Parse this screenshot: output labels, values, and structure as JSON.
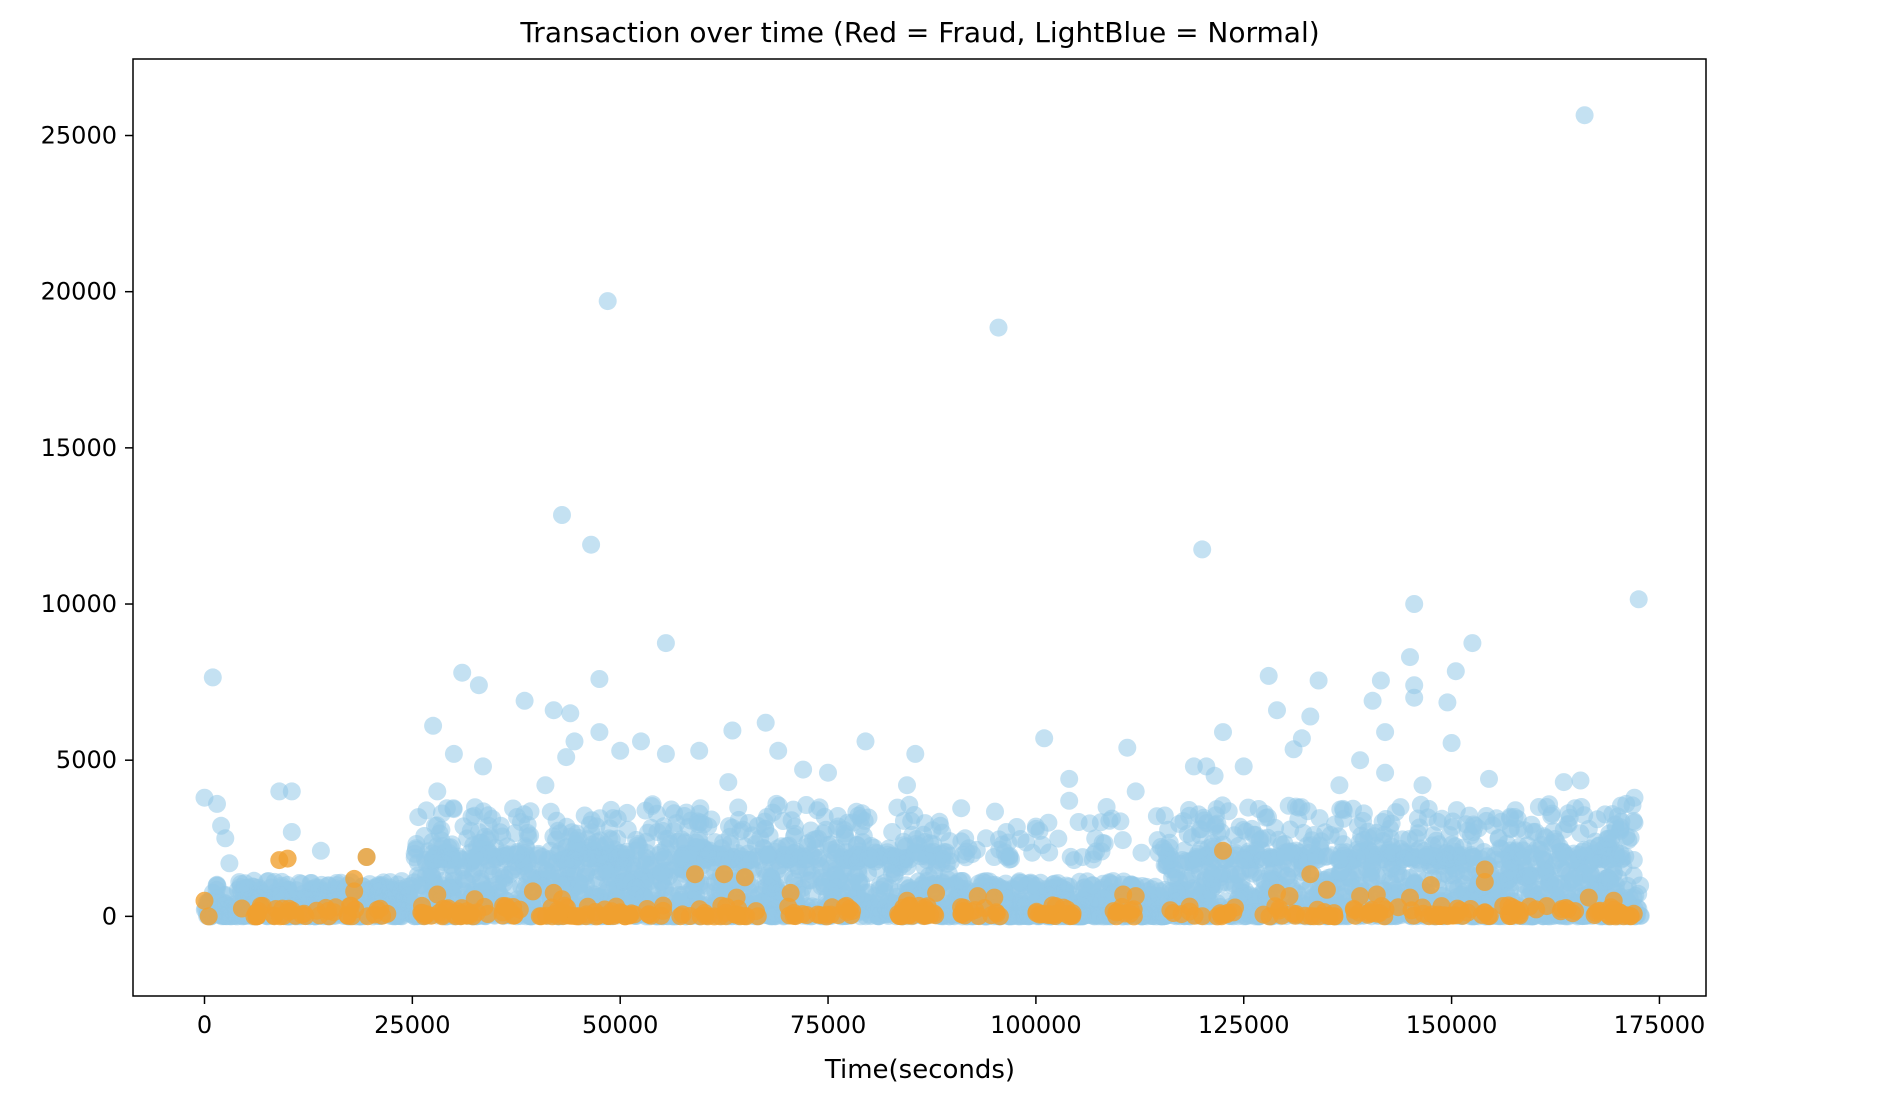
{
  "chart_data": {
    "type": "scatter",
    "title": "Transaction over time (Red = Fraud, LightBlue = Normal)",
    "xlabel": "Time(seconds)",
    "ylabel": "",
    "xlim": [
      -8600,
      180600
    ],
    "ylim": [
      -2550,
      27450
    ],
    "x_ticks": [
      0,
      25000,
      50000,
      75000,
      100000,
      125000,
      150000,
      175000
    ],
    "x_tick_labels": [
      "0",
      "25000",
      "50000",
      "75000",
      "100000",
      "125000",
      "150000",
      "175000"
    ],
    "y_ticks": [
      0,
      5000,
      10000,
      15000,
      20000,
      25000
    ],
    "y_tick_labels": [
      "0",
      "5000",
      "10000",
      "15000",
      "20000",
      "25000"
    ],
    "grid": false,
    "legend": "none",
    "series": [
      {
        "color": "#93c9e8",
        "opacity": 0.55,
        "points": [
          [
            0,
            3800
          ],
          [
            1000,
            7650
          ],
          [
            1500,
            3600
          ],
          [
            2000,
            2900
          ],
          [
            2500,
            2500
          ],
          [
            3000,
            1700
          ],
          [
            9000,
            4000
          ],
          [
            10500,
            4000
          ],
          [
            10500,
            2700
          ],
          [
            14000,
            2100
          ],
          [
            19500,
            1900
          ],
          [
            27500,
            6100
          ],
          [
            28000,
            4000
          ],
          [
            30000,
            5200
          ],
          [
            31000,
            7800
          ],
          [
            33000,
            7400
          ],
          [
            33500,
            4800
          ],
          [
            38500,
            6900
          ],
          [
            41000,
            4200
          ],
          [
            42000,
            6600
          ],
          [
            43000,
            12850
          ],
          [
            43500,
            5100
          ],
          [
            44000,
            6500
          ],
          [
            44500,
            5600
          ],
          [
            46500,
            11900
          ],
          [
            47500,
            7600
          ],
          [
            47500,
            5900
          ],
          [
            48500,
            19700
          ],
          [
            50000,
            5300
          ],
          [
            52500,
            5600
          ],
          [
            55500,
            8750
          ],
          [
            55500,
            5200
          ],
          [
            59500,
            5300
          ],
          [
            63000,
            4300
          ],
          [
            63500,
            5950
          ],
          [
            67500,
            6200
          ],
          [
            69000,
            5300
          ],
          [
            72000,
            4700
          ],
          [
            75000,
            4600
          ],
          [
            79500,
            5600
          ],
          [
            84500,
            4200
          ],
          [
            85500,
            5200
          ],
          [
            88500,
            2900
          ],
          [
            91500,
            2500
          ],
          [
            94000,
            2500
          ],
          [
            95500,
            18850
          ],
          [
            96000,
            2300
          ],
          [
            100000,
            2800
          ],
          [
            101000,
            5700
          ],
          [
            101500,
            3000
          ],
          [
            104000,
            4400
          ],
          [
            104000,
            3700
          ],
          [
            108500,
            3500
          ],
          [
            111000,
            5400
          ],
          [
            112000,
            4000
          ],
          [
            119000,
            4800
          ],
          [
            120000,
            11750
          ],
          [
            120500,
            4800
          ],
          [
            121500,
            4500
          ],
          [
            122500,
            5900
          ],
          [
            125000,
            4800
          ],
          [
            128000,
            7700
          ],
          [
            129000,
            6600
          ],
          [
            131000,
            5350
          ],
          [
            132000,
            5700
          ],
          [
            133000,
            6400
          ],
          [
            134000,
            7550
          ],
          [
            136500,
            4200
          ],
          [
            139000,
            5000
          ],
          [
            140500,
            6900
          ],
          [
            141500,
            7550
          ],
          [
            142000,
            5900
          ],
          [
            142000,
            4600
          ],
          [
            145000,
            8300
          ],
          [
            145500,
            10000
          ],
          [
            145500,
            7400
          ],
          [
            145500,
            7000
          ],
          [
            146500,
            4200
          ],
          [
            149500,
            6850
          ],
          [
            150000,
            5550
          ],
          [
            150500,
            7850
          ],
          [
            152500,
            8750
          ],
          [
            154500,
            4400
          ],
          [
            160500,
            3500
          ],
          [
            163500,
            4300
          ],
          [
            165500,
            4350
          ],
          [
            166000,
            25650
          ],
          [
            166500,
            2800
          ],
          [
            170000,
            3200
          ],
          [
            171000,
            3600
          ],
          [
            172000,
            3800
          ],
          [
            172000,
            3000
          ],
          [
            172500,
            10150
          ]
        ],
        "band": {
          "x_min": 0,
          "x_max": 172800,
          "y_min": 0,
          "y_max": 1800,
          "count": 3200
        },
        "band_upper": {
          "x_min": 25000,
          "x_max": 172000,
          "y_min": 1800,
          "y_max": 3600,
          "count": 900
        }
      },
      {
        "color": "#f0a030",
        "opacity": 0.8,
        "points": [
          [
            0,
            500
          ],
          [
            500,
            0
          ],
          [
            4500,
            250
          ],
          [
            9000,
            1800
          ],
          [
            10000,
            1850
          ],
          [
            18000,
            1200
          ],
          [
            18000,
            800
          ],
          [
            19500,
            1900
          ],
          [
            28000,
            700
          ],
          [
            32500,
            550
          ],
          [
            39500,
            800
          ],
          [
            42000,
            750
          ],
          [
            43000,
            550
          ],
          [
            59000,
            1350
          ],
          [
            62500,
            1350
          ],
          [
            65000,
            1250
          ],
          [
            64000,
            600
          ],
          [
            70500,
            750
          ],
          [
            84500,
            500
          ],
          [
            88000,
            750
          ],
          [
            93000,
            650
          ],
          [
            95000,
            600
          ],
          [
            102000,
            350
          ],
          [
            110500,
            700
          ],
          [
            112000,
            650
          ],
          [
            122500,
            2100
          ],
          [
            129000,
            750
          ],
          [
            130500,
            650
          ],
          [
            133000,
            1350
          ],
          [
            135000,
            850
          ],
          [
            139000,
            650
          ],
          [
            141000,
            700
          ],
          [
            145000,
            600
          ],
          [
            147500,
            1000
          ],
          [
            154000,
            1500
          ],
          [
            154000,
            1100
          ],
          [
            166500,
            600
          ],
          [
            169500,
            500
          ]
        ],
        "clusters": [
          [
            6000,
            22000,
            40
          ],
          [
            26000,
            38000,
            40
          ],
          [
            40000,
            52000,
            40
          ],
          [
            53000,
            68000,
            30
          ],
          [
            70000,
            78000,
            20
          ],
          [
            83000,
            88000,
            25
          ],
          [
            90000,
            96000,
            15
          ],
          [
            100000,
            105000,
            20
          ],
          [
            109000,
            112000,
            10
          ],
          [
            116000,
            124000,
            15
          ],
          [
            127000,
            136000,
            20
          ],
          [
            138000,
            150000,
            30
          ],
          [
            150000,
            162000,
            25
          ],
          [
            163000,
            172000,
            25
          ]
        ],
        "cluster_y_max": 350
      }
    ]
  }
}
